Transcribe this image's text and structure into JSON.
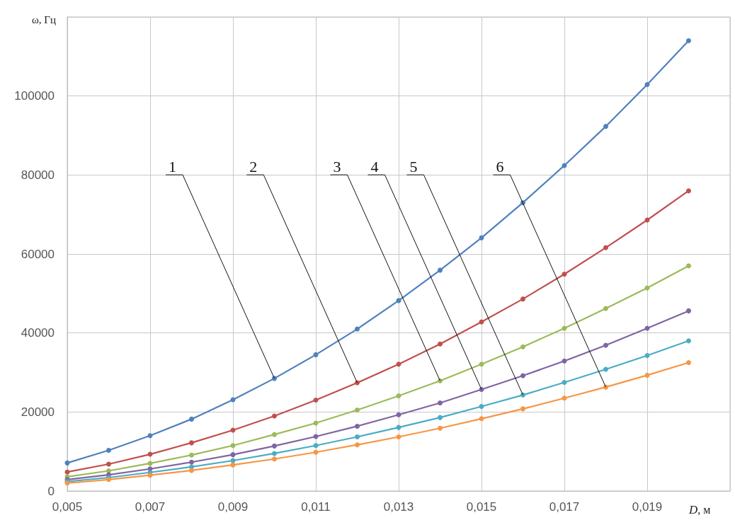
{
  "chart_data": {
    "type": "line",
    "xlabel": "D, м",
    "ylabel": "ω, Гц",
    "x": [
      0.005,
      0.006,
      0.007,
      0.008,
      0.009,
      0.01,
      0.011,
      0.012,
      0.013,
      0.014,
      0.015,
      0.016,
      0.017,
      0.018,
      0.019,
      0.02
    ],
    "series": [
      {
        "color": "#4f81bd",
        "values": [
          7100,
          10300,
          14000,
          18200,
          23100,
          28500,
          34500,
          41000,
          48200,
          55900,
          64100,
          73000,
          82400,
          92300,
          102900,
          114000
        ]
      },
      {
        "color": "#c0504d",
        "values": [
          4800,
          6800,
          9300,
          12200,
          15400,
          19000,
          23000,
          27400,
          32100,
          37200,
          42800,
          48600,
          54900,
          61600,
          68600,
          76000
        ]
      },
      {
        "color": "#9bbb59",
        "values": [
          3600,
          5100,
          7000,
          9100,
          11500,
          14300,
          17200,
          20500,
          24100,
          27900,
          32100,
          36500,
          41200,
          46200,
          51400,
          57000
        ]
      },
      {
        "color": "#8064a2",
        "values": [
          2900,
          4100,
          5600,
          7300,
          9200,
          11400,
          13800,
          16400,
          19300,
          22300,
          25700,
          29200,
          32900,
          36900,
          41200,
          45600
        ]
      },
      {
        "color": "#4bacc6",
        "values": [
          2400,
          3400,
          4700,
          6100,
          7700,
          9500,
          11500,
          13700,
          16100,
          18600,
          21400,
          24300,
          27500,
          30800,
          34300,
          38000
        ]
      },
      {
        "color": "#f79646",
        "values": [
          2000,
          2900,
          4000,
          5200,
          6600,
          8100,
          9800,
          11700,
          13700,
          15900,
          18300,
          20800,
          23500,
          26300,
          29300,
          32500
        ]
      }
    ],
    "xlim": [
      0.005,
      0.021
    ],
    "xticks": [
      {
        "value": 0.005,
        "label": "0,005"
      },
      {
        "value": 0.007,
        "label": "0,007"
      },
      {
        "value": 0.009,
        "label": "0,009"
      },
      {
        "value": 0.011,
        "label": "0,011"
      },
      {
        "value": 0.013,
        "label": "0,013"
      },
      {
        "value": 0.015,
        "label": "0,015"
      },
      {
        "value": 0.017,
        "label": "0,017"
      },
      {
        "value": 0.019,
        "label": "0,019"
      },
      {
        "value": 0.021,
        "label": null
      }
    ],
    "ylim": [
      0,
      120000
    ],
    "yticks": [
      0,
      20000,
      40000,
      60000,
      80000,
      100000,
      {
        "value": 120000,
        "label": null
      }
    ],
    "grid": true,
    "marker": "circle",
    "line_style": "solid",
    "annotations": [
      {
        "text": "1",
        "x": 0.01,
        "y": 28500
      },
      {
        "text": "2",
        "x": 0.012,
        "y": 27400
      },
      {
        "text": "3",
        "x": 0.014,
        "y": 27900
      },
      {
        "text": "4",
        "x": 0.015,
        "y": 25700
      },
      {
        "text": "5",
        "x": 0.016,
        "y": 24300
      },
      {
        "text": "6",
        "x": 0.018,
        "y": 26300
      }
    ]
  }
}
